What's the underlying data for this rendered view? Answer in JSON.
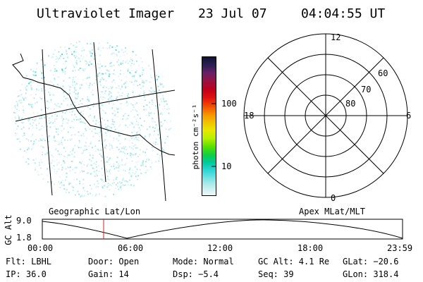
{
  "header": {
    "title": "Ultraviolet Imager",
    "date": "23 Jul 07",
    "time": "04:04:55 UT"
  },
  "colorbar": {
    "unit_label": "photon cm⁻²s⁻¹",
    "ticks": [
      "100",
      "10"
    ],
    "colors": [
      "#111133",
      "#2b1f55",
      "#6a1f66",
      "#9a1040",
      "#c0001a",
      "#e01010",
      "#f04a00",
      "#f79000",
      "#f2c000",
      "#e8e800",
      "#b4f000",
      "#5ae000",
      "#10d040",
      "#00c8a0",
      "#30d8d8",
      "#80e4e4",
      "#c4eeee",
      "#eef8f8"
    ]
  },
  "polar_plot": {
    "top_label": "12",
    "bottom_label": "0",
    "left_label": "18",
    "right_label": "6",
    "ring_labels": [
      "60",
      "70",
      "80"
    ]
  },
  "timeline": {
    "left_caption": "Geographic Lat/Lon",
    "right_caption": "Apex MLat/MLT",
    "ylabel": "GC Alt",
    "ytick_top": "9.0",
    "ytick_bottom": "1.8",
    "xticks": [
      "00:00",
      "06:00",
      "12:00",
      "18:00",
      "23:59"
    ],
    "cursor_color": "#d02020"
  },
  "footer": {
    "row1": {
      "flt": "Flt: LBHL",
      "door": "Door: Open",
      "mode": "Mode: Normal",
      "gcalt": "GC Alt: 4.1 Re",
      "glat": "GLat: −20.6"
    },
    "row2": {
      "ip": "IP: 36.0",
      "gain": "Gain: 14",
      "dsp": "Dsp:   −5.4",
      "seq": "Seq: 39",
      "glon": "GLon: 318.4"
    }
  }
}
